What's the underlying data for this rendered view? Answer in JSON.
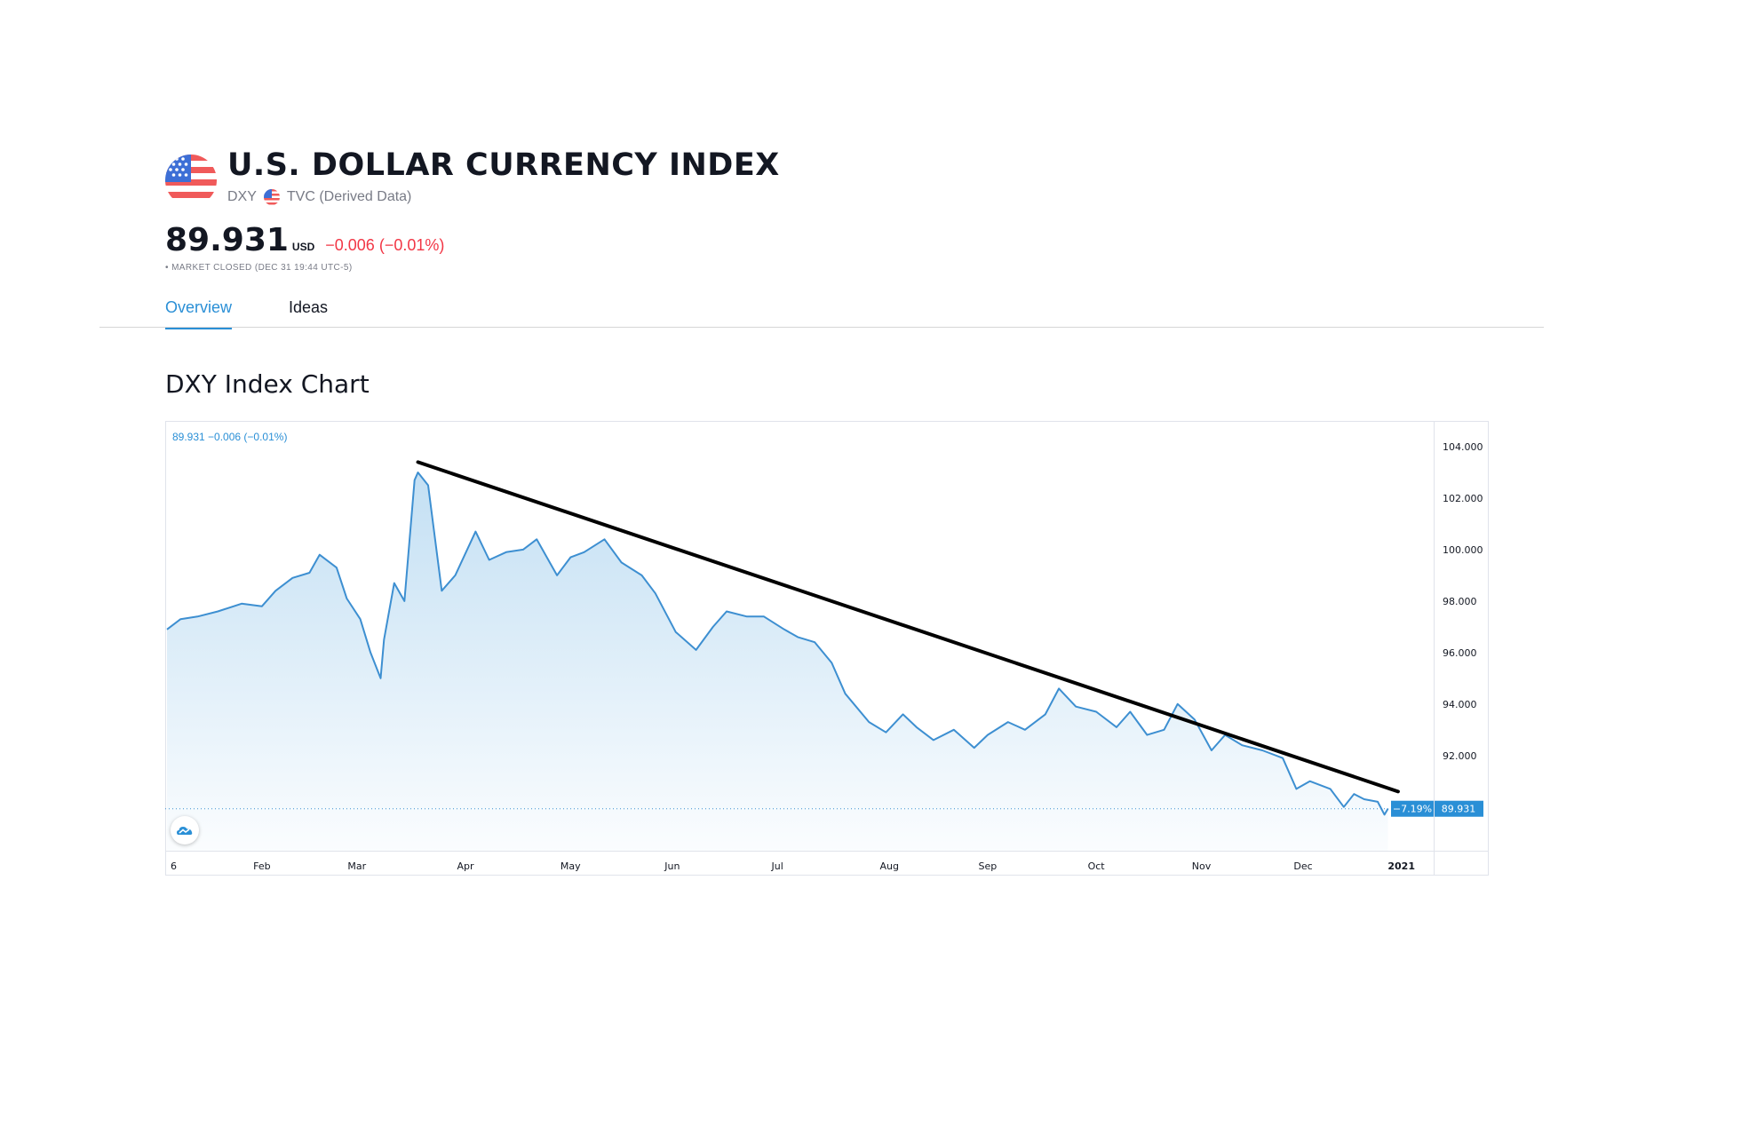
{
  "header": {
    "title": "U.S. DOLLAR CURRENCY INDEX",
    "symbol": "DXY",
    "source": "TVC (Derived Data)",
    "flag_icon": "us-flag-icon"
  },
  "quote": {
    "price": "89.931",
    "currency": "USD",
    "change": "−0.006 (−0.01%)",
    "status": "• MARKET CLOSED (DEC 31 19:44 UTC-5)"
  },
  "tabs": [
    {
      "label": "Overview",
      "active": true
    },
    {
      "label": "Ideas",
      "active": false
    }
  ],
  "chart_section_title": "DXY Index Chart",
  "chart_legend": "89.931  −0.006 (−0.01%)",
  "last_price_badge": {
    "pct": "−7.19%",
    "price": "89.931"
  },
  "colors": {
    "accent": "#2a8fd6",
    "negative": "#f23645",
    "line": "#3d8fd1",
    "trendline": "#000000"
  },
  "chart_data": {
    "type": "area",
    "title": "DXY Index Chart",
    "xlabel": "",
    "ylabel": "",
    "x_ticks": [
      "6",
      "Feb",
      "Mar",
      "Apr",
      "May",
      "Jun",
      "Jul",
      "Aug",
      "Sep",
      "Oct",
      "Nov",
      "Dec",
      "2021"
    ],
    "y_ticks": [
      "104.000",
      "102.000",
      "100.000",
      "98.000",
      "96.000",
      "94.000",
      "92.000"
    ],
    "ylim": [
      88.3,
      105.0
    ],
    "last_value": 89.931,
    "series": [
      {
        "points": [
          [
            "2020-01-06",
            96.9
          ],
          [
            "2020-01-10",
            97.3
          ],
          [
            "2020-01-15",
            97.4
          ],
          [
            "2020-01-21",
            97.6
          ],
          [
            "2020-01-28",
            97.9
          ],
          [
            "2020-02-03",
            97.8
          ],
          [
            "2020-02-07",
            98.4
          ],
          [
            "2020-02-12",
            98.9
          ],
          [
            "2020-02-17",
            99.1
          ],
          [
            "2020-02-20",
            99.8
          ],
          [
            "2020-02-25",
            99.3
          ],
          [
            "2020-02-28",
            98.1
          ],
          [
            "2020-03-03",
            97.3
          ],
          [
            "2020-03-06",
            96.0
          ],
          [
            "2020-03-09",
            95.0
          ],
          [
            "2020-03-10",
            96.5
          ],
          [
            "2020-03-13",
            98.7
          ],
          [
            "2020-03-16",
            98.0
          ],
          [
            "2020-03-19",
            102.7
          ],
          [
            "2020-03-20",
            103.0
          ],
          [
            "2020-03-23",
            102.5
          ],
          [
            "2020-03-27",
            98.4
          ],
          [
            "2020-03-31",
            99.0
          ],
          [
            "2020-04-06",
            100.7
          ],
          [
            "2020-04-10",
            99.6
          ],
          [
            "2020-04-15",
            99.9
          ],
          [
            "2020-04-20",
            100.0
          ],
          [
            "2020-04-24",
            100.4
          ],
          [
            "2020-04-30",
            99.0
          ],
          [
            "2020-05-04",
            99.7
          ],
          [
            "2020-05-08",
            99.9
          ],
          [
            "2020-05-14",
            100.4
          ],
          [
            "2020-05-19",
            99.5
          ],
          [
            "2020-05-25",
            99.0
          ],
          [
            "2020-05-29",
            98.3
          ],
          [
            "2020-06-04",
            96.8
          ],
          [
            "2020-06-10",
            96.1
          ],
          [
            "2020-06-15",
            97.0
          ],
          [
            "2020-06-19",
            97.6
          ],
          [
            "2020-06-25",
            97.4
          ],
          [
            "2020-06-30",
            97.4
          ],
          [
            "2020-07-06",
            96.9
          ],
          [
            "2020-07-10",
            96.6
          ],
          [
            "2020-07-15",
            96.4
          ],
          [
            "2020-07-20",
            95.6
          ],
          [
            "2020-07-24",
            94.4
          ],
          [
            "2020-07-31",
            93.3
          ],
          [
            "2020-08-05",
            92.9
          ],
          [
            "2020-08-10",
            93.6
          ],
          [
            "2020-08-14",
            93.1
          ],
          [
            "2020-08-19",
            92.6
          ],
          [
            "2020-08-25",
            93.0
          ],
          [
            "2020-08-31",
            92.3
          ],
          [
            "2020-09-04",
            92.8
          ],
          [
            "2020-09-10",
            93.3
          ],
          [
            "2020-09-15",
            93.0
          ],
          [
            "2020-09-21",
            93.6
          ],
          [
            "2020-09-25",
            94.6
          ],
          [
            "2020-09-30",
            93.9
          ],
          [
            "2020-10-06",
            93.7
          ],
          [
            "2020-10-12",
            93.1
          ],
          [
            "2020-10-16",
            93.7
          ],
          [
            "2020-10-21",
            92.8
          ],
          [
            "2020-10-26",
            93.0
          ],
          [
            "2020-10-30",
            94.0
          ],
          [
            "2020-11-04",
            93.4
          ],
          [
            "2020-11-09",
            92.2
          ],
          [
            "2020-11-13",
            92.8
          ],
          [
            "2020-11-18",
            92.4
          ],
          [
            "2020-11-24",
            92.2
          ],
          [
            "2020-11-30",
            91.9
          ],
          [
            "2020-12-04",
            90.7
          ],
          [
            "2020-12-08",
            91.0
          ],
          [
            "2020-12-14",
            90.7
          ],
          [
            "2020-12-18",
            90.0
          ],
          [
            "2020-12-21",
            90.5
          ],
          [
            "2020-12-24",
            90.3
          ],
          [
            "2020-12-28",
            90.2
          ],
          [
            "2020-12-30",
            89.7
          ],
          [
            "2020-12-31",
            89.931
          ]
        ]
      }
    ],
    "trendline": {
      "start": [
        "2020-03-20",
        103.4
      ],
      "end": [
        "2021-01-03",
        90.6
      ]
    },
    "grid": false,
    "legend": "top-left"
  }
}
